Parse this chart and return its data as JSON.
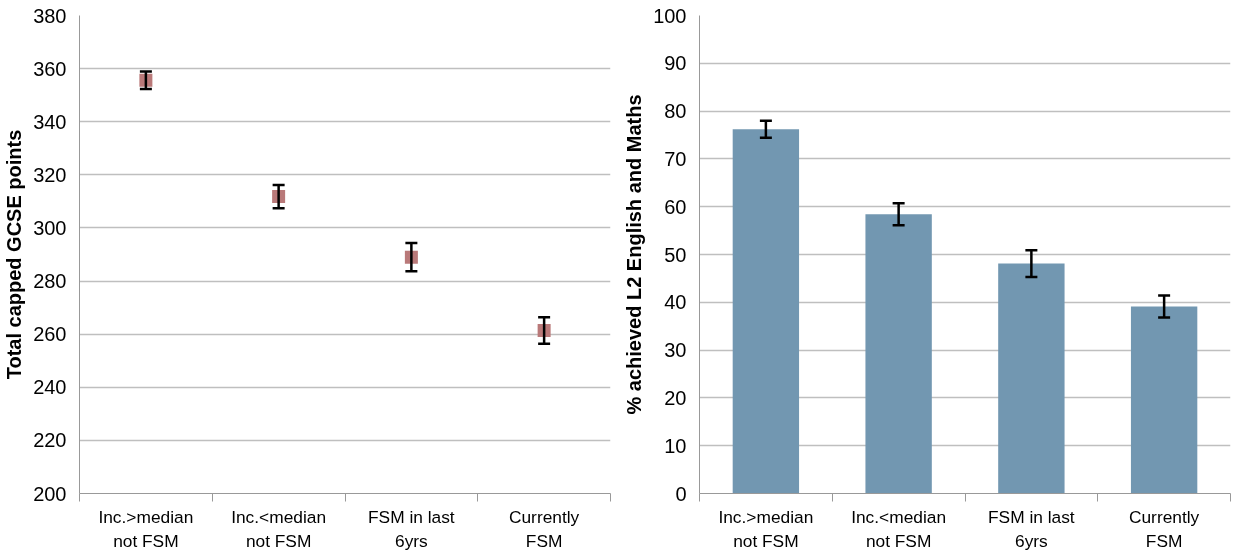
{
  "chart_data": [
    {
      "type": "scatter",
      "ylabel": "Total capped GCSE points",
      "categories": [
        "Inc.>median not FSM",
        "Inc.<median not FSM",
        "FSM in last 6yrs",
        "Currently FSM"
      ],
      "series": [
        {
          "color": "#b97979",
          "values": [
            355.6,
            311.8,
            289,
            261.4
          ],
          "errors": [
            3.3,
            4.4,
            5.3,
            5
          ]
        }
      ],
      "marker": "square",
      "ylim": [
        200,
        380
      ],
      "yticks": [
        200,
        220,
        240,
        260,
        280,
        300,
        320,
        340,
        360,
        380
      ],
      "grid": "y"
    },
    {
      "type": "bar",
      "ylabel": "% achieved L2 English and Maths",
      "categories": [
        "Inc.>median not FSM",
        "Inc.<median not FSM",
        "FSM in last 6yrs",
        "Currently FSM"
      ],
      "series": [
        {
          "color": "#7297b1",
          "values": [
            76.2,
            58.4,
            48.1,
            39.1
          ],
          "errors": [
            1.8,
            2.3,
            2.8,
            2.3
          ]
        }
      ],
      "ylim": [
        0,
        100
      ],
      "yticks": [
        0,
        10,
        20,
        30,
        40,
        50,
        60,
        70,
        80,
        90,
        100
      ],
      "grid": "y"
    }
  ]
}
